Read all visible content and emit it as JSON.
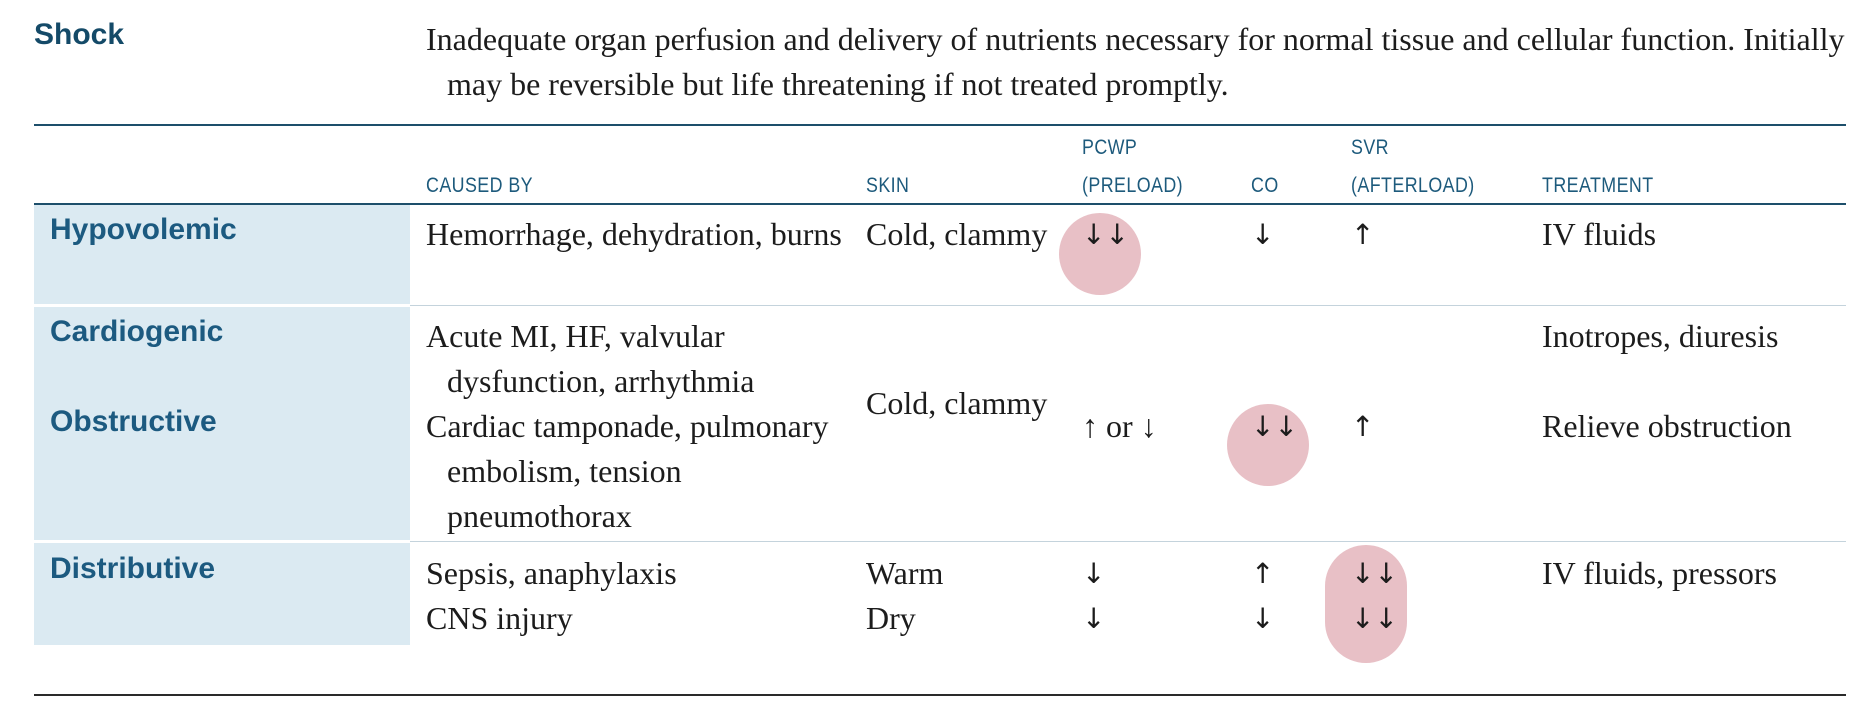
{
  "title": "Shock",
  "definition": "Inadequate organ perfusion and delivery of nutrients necessary for normal tissue and cellular function. Initially may be reversible but life threatening if not treated promptly.",
  "columns": {
    "caused_by": "CAUSED BY",
    "skin": "SKIN",
    "pcwp_top": "PCWP",
    "pcwp_bottom": "(PRELOAD)",
    "co": "CO",
    "svr_top": "SVR",
    "svr_bottom": "(AFTERLOAD)",
    "treatment": "TREATMENT"
  },
  "rows": {
    "hypovolemic": {
      "label": "Hypovolemic",
      "caused_by": "Hemorrhage, dehydration, burns",
      "skin": "Cold, clammy",
      "pcwp": "↓↓",
      "co": "↓",
      "svr": "↑",
      "treatment": "IV fluids"
    },
    "cardiogenic": {
      "label": "Cardiogenic",
      "caused_by": "Acute MI, HF, valvular dysfunction, arrhythmia",
      "treatment": "Inotropes, diuresis"
    },
    "obstructive": {
      "label": "Obstructive",
      "caused_by": "Cardiac tamponade, pulmonary embolism, tension pneumothorax",
      "treatment": "Relieve obstruction"
    },
    "cardio_obstructive_shared": {
      "skin": "Cold, clammy",
      "pcwp": "↑ or ↓",
      "co": "↓↓",
      "svr": "↑"
    },
    "distributive": {
      "label": "Distributive",
      "treatment": "IV fluids, pressors",
      "sepsis": {
        "caused_by": "Sepsis, anaphylaxis",
        "skin": "Warm",
        "pcwp": "↓",
        "co": "↑",
        "svr": "↓↓"
      },
      "cns": {
        "caused_by": "CNS injury",
        "skin": "Dry",
        "pcwp": "↓",
        "co": "↓",
        "svr": "↓↓"
      }
    }
  },
  "colors": {
    "heading": "#144a68",
    "row_label_bg": "#dbeaf2",
    "highlight_circle": "#e8c0c6"
  }
}
